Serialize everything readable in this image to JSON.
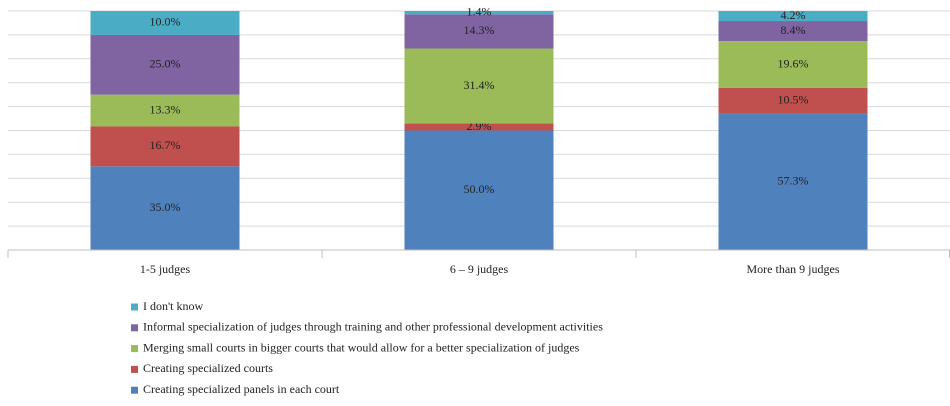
{
  "chart_data": {
    "type": "stacked_bar",
    "categories": [
      "1-5 judges",
      "6 – 9 judges",
      "More than 9 judges"
    ],
    "series": [
      {
        "name": "Creating specialized panels in each court",
        "color": "#4f81bd",
        "values": [
          35.0,
          50.0,
          57.3
        ],
        "value_labels": [
          "35.0%",
          "50.0%",
          "57.3%"
        ]
      },
      {
        "name": "Creating specialized courts",
        "color": "#c0504d",
        "values": [
          16.7,
          2.9,
          10.5
        ],
        "value_labels": [
          "16.7%",
          "2.9%",
          "10.5%"
        ]
      },
      {
        "name": "Merging small courts in bigger courts that would allow for a better specialization of judges",
        "color": "#9bbb59",
        "values": [
          13.3,
          31.4,
          19.6
        ],
        "value_labels": [
          "13.3%",
          "31.4%",
          "19.6%"
        ]
      },
      {
        "name": "Informal specialization of judges through training and other professional development activities",
        "color": "#8064a2",
        "values": [
          25.0,
          14.3,
          8.4
        ],
        "value_labels": [
          "25.0%",
          "14.3%",
          "8.4%"
        ]
      },
      {
        "name": "I don't know",
        "color": "#4bacc6",
        "values": [
          10.0,
          1.4,
          4.2
        ],
        "value_labels": [
          "10.0%",
          "1.4%",
          "4.2%"
        ]
      }
    ],
    "ylim": [
      0,
      100
    ],
    "yticks": [
      0,
      10,
      20,
      30,
      40,
      50,
      60,
      70,
      80,
      90,
      100
    ],
    "grid": true,
    "legend": "bottom"
  }
}
